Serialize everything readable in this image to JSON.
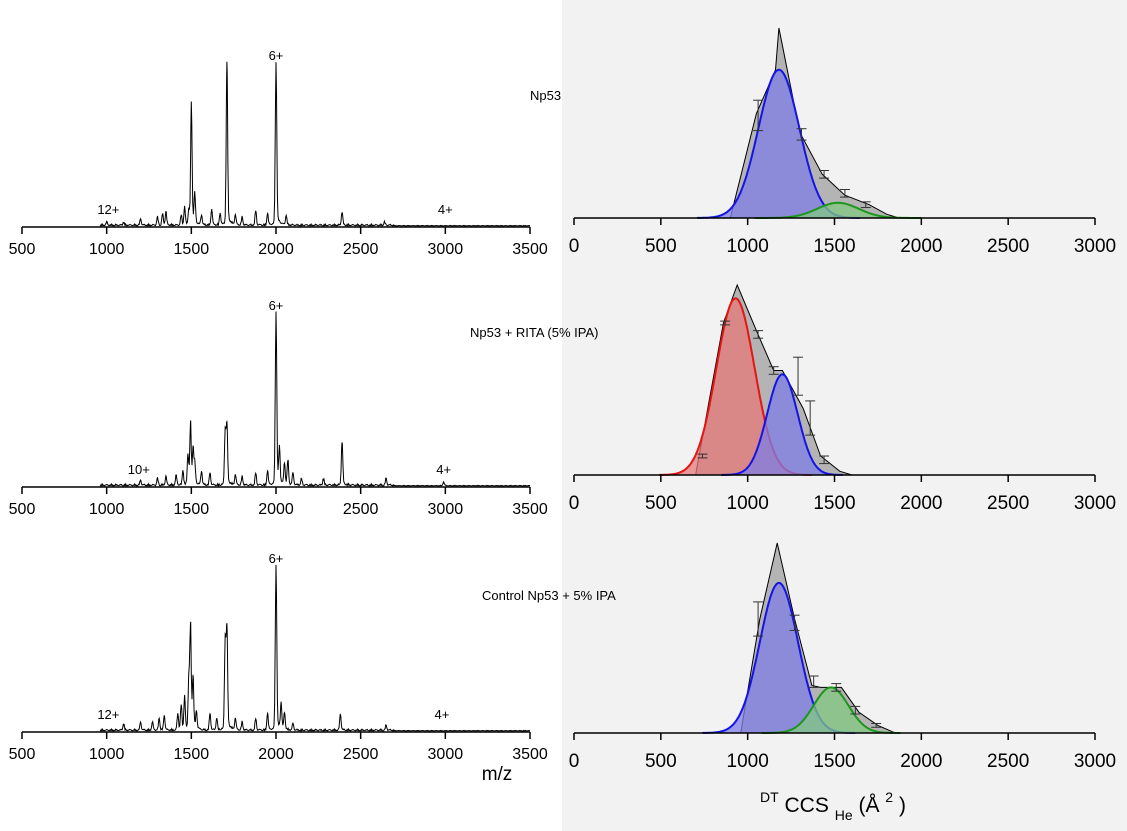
{
  "figure": {
    "xlabel_left": "m/z",
    "xlabel_right_sup": "DT",
    "xlabel_right_main": "CCS",
    "xlabel_right_sub": "He",
    "xlabel_right_tail_open": " (Å",
    "xlabel_right_tail_sup": "2",
    "xlabel_right_tail_close": ")",
    "colors": {
      "envelope_fill": "#b4b4b4",
      "blue_fill": "#7d7de6",
      "blue_line": "#1414e6",
      "red_fill": "#e67878",
      "red_line": "#e61414",
      "green_fill": "#82c882",
      "green_line": "#1e961e",
      "purple_overlap": "#8c5ab4",
      "right_panel_bg": "#f2f2f2"
    }
  },
  "chart_data": [
    {
      "type": "line",
      "panel": "mass-spectrum-np53",
      "xlabel": "",
      "ylabel": "",
      "xlim": [
        500,
        3500
      ],
      "xticks": [
        "500",
        "1000",
        "1500",
        "2000",
        "2500",
        "3000",
        "3500"
      ],
      "peak_labels": [
        {
          "text": "12+",
          "x": 1010
        },
        {
          "text": "6+",
          "x": 2000
        },
        {
          "text": "4+",
          "x": 3000
        }
      ],
      "peaks": [
        [
          1000,
          0.02
        ],
        [
          1100,
          0.02
        ],
        [
          1200,
          0.04
        ],
        [
          1300,
          0.05
        ],
        [
          1330,
          0.07
        ],
        [
          1350,
          0.08
        ],
        [
          1440,
          0.06
        ],
        [
          1460,
          0.11
        ],
        [
          1485,
          0.09
        ],
        [
          1500,
          0.75
        ],
        [
          1520,
          0.18
        ],
        [
          1560,
          0.06
        ],
        [
          1620,
          0.1
        ],
        [
          1670,
          0.07
        ],
        [
          1710,
          1.0
        ],
        [
          1760,
          0.06
        ],
        [
          1800,
          0.05
        ],
        [
          1880,
          0.09
        ],
        [
          1950,
          0.07
        ],
        [
          2000,
          1.0
        ],
        [
          2060,
          0.06
        ],
        [
          2390,
          0.08
        ],
        [
          2640,
          0.02
        ]
      ]
    },
    {
      "type": "area",
      "panel": "ccs-np53",
      "title": "Np53",
      "xlabel": "",
      "ylabel": "",
      "xlim": [
        0,
        3000
      ],
      "xticks": [
        "0",
        "500",
        "1000",
        "1500",
        "2000",
        "2500",
        "3000"
      ],
      "envelope": [
        [
          900,
          0.0
        ],
        [
          1050,
          0.55
        ],
        [
          1160,
          0.78
        ],
        [
          1180,
          1.0
        ],
        [
          1300,
          0.45
        ],
        [
          1430,
          0.23
        ],
        [
          1560,
          0.12
        ],
        [
          1700,
          0.07
        ],
        [
          1800,
          0.02
        ],
        [
          1870,
          0.0
        ]
      ],
      "errorbars": [
        [
          1060,
          0.54,
          0.08
        ],
        [
          1310,
          0.44,
          0.03
        ],
        [
          1440,
          0.23,
          0.02
        ],
        [
          1560,
          0.13,
          0.02
        ],
        [
          1680,
          0.07,
          0.015
        ]
      ],
      "gaussians": [
        {
          "color": "blue",
          "center": 1180,
          "sigma": 118,
          "amplitude": 0.78
        },
        {
          "color": "green",
          "center": 1520,
          "sigma": 120,
          "amplitude": 0.08
        }
      ]
    },
    {
      "type": "line",
      "panel": "mass-spectrum-np53-rita",
      "xlabel": "",
      "ylabel": "",
      "xlim": [
        500,
        3500
      ],
      "xticks": [
        "500",
        "1000",
        "1500",
        "2000",
        "2500",
        "3000",
        "3500"
      ],
      "peak_labels": [
        {
          "text": "10+",
          "x": 1190
        },
        {
          "text": "6+",
          "x": 2000
        },
        {
          "text": "4+",
          "x": 2990
        }
      ],
      "peaks": [
        [
          1200,
          0.03
        ],
        [
          1300,
          0.04
        ],
        [
          1350,
          0.05
        ],
        [
          1410,
          0.06
        ],
        [
          1450,
          0.08
        ],
        [
          1480,
          0.18
        ],
        [
          1495,
          0.35
        ],
        [
          1510,
          0.2
        ],
        [
          1520,
          0.12
        ],
        [
          1560,
          0.08
        ],
        [
          1610,
          0.07
        ],
        [
          1700,
          0.32
        ],
        [
          1710,
          0.34
        ],
        [
          1760,
          0.06
        ],
        [
          1800,
          0.05
        ],
        [
          1880,
          0.07
        ],
        [
          1950,
          0.08
        ],
        [
          2000,
          1.0
        ],
        [
          2020,
          0.2
        ],
        [
          2050,
          0.12
        ],
        [
          2070,
          0.14
        ],
        [
          2100,
          0.07
        ],
        [
          2150,
          0.04
        ],
        [
          2280,
          0.04
        ],
        [
          2390,
          0.25
        ],
        [
          2650,
          0.04
        ],
        [
          2990,
          0.02
        ]
      ]
    },
    {
      "type": "area",
      "panel": "ccs-np53-rita",
      "title": "Np53 + RITA (5% IPA)",
      "xlabel": "",
      "ylabel": "",
      "xlim": [
        0,
        3000
      ],
      "xticks": [
        "0",
        "500",
        "1000",
        "1500",
        "2000",
        "2500",
        "3000"
      ],
      "envelope": [
        [
          700,
          0.0
        ],
        [
          730,
          0.15
        ],
        [
          860,
          0.8
        ],
        [
          940,
          1.0
        ],
        [
          1050,
          0.76
        ],
        [
          1150,
          0.55
        ],
        [
          1200,
          0.55
        ],
        [
          1320,
          0.35
        ],
        [
          1420,
          0.1
        ],
        [
          1530,
          0.02
        ],
        [
          1600,
          0.0
        ]
      ],
      "errorbars": [
        [
          740,
          0.1,
          0.01
        ],
        [
          870,
          0.8,
          0.01
        ],
        [
          1060,
          0.74,
          0.02
        ],
        [
          1150,
          0.55,
          0.02
        ],
        [
          1290,
          0.52,
          0.1
        ],
        [
          1360,
          0.3,
          0.09
        ],
        [
          1440,
          0.08,
          0.02
        ]
      ],
      "gaussians": [
        {
          "color": "red",
          "center": 930,
          "sigma": 110,
          "amplitude": 0.93
        },
        {
          "color": "blue",
          "center": 1200,
          "sigma": 88,
          "amplitude": 0.53
        }
      ]
    },
    {
      "type": "line",
      "panel": "mass-spectrum-control",
      "xlabel": "",
      "ylabel": "",
      "xlim": [
        500,
        3500
      ],
      "xticks": [
        "500",
        "1000",
        "1500",
        "2000",
        "2500",
        "3000",
        "3500"
      ],
      "peak_labels": [
        {
          "text": "12+",
          "x": 1010
        },
        {
          "text": "6+",
          "x": 2000
        },
        {
          "text": "4+",
          "x": 2980
        }
      ],
      "peaks": [
        [
          1100,
          0.04
        ],
        [
          1200,
          0.05
        ],
        [
          1270,
          0.05
        ],
        [
          1310,
          0.07
        ],
        [
          1340,
          0.09
        ],
        [
          1420,
          0.1
        ],
        [
          1440,
          0.15
        ],
        [
          1460,
          0.2
        ],
        [
          1485,
          0.3
        ],
        [
          1495,
          0.61
        ],
        [
          1510,
          0.3
        ],
        [
          1530,
          0.1
        ],
        [
          1610,
          0.1
        ],
        [
          1650,
          0.07
        ],
        [
          1700,
          0.55
        ],
        [
          1710,
          0.6
        ],
        [
          1760,
          0.07
        ],
        [
          1800,
          0.05
        ],
        [
          1880,
          0.07
        ],
        [
          1950,
          0.1
        ],
        [
          2000,
          1.0
        ],
        [
          2030,
          0.15
        ],
        [
          2050,
          0.1
        ],
        [
          2100,
          0.04
        ],
        [
          2380,
          0.1
        ],
        [
          2650,
          0.03
        ]
      ]
    },
    {
      "type": "area",
      "panel": "ccs-control",
      "title": "Control Np53 + 5% IPA",
      "xlabel": "",
      "ylabel": "",
      "xlim": [
        0,
        3000
      ],
      "xticks": [
        "0",
        "500",
        "1000",
        "1500",
        "2000",
        "2500",
        "3000"
      ],
      "envelope": [
        [
          960,
          0.0
        ],
        [
          1070,
          0.6
        ],
        [
          1170,
          1.0
        ],
        [
          1270,
          0.6
        ],
        [
          1370,
          0.25
        ],
        [
          1420,
          0.24
        ],
        [
          1540,
          0.24
        ],
        [
          1640,
          0.11
        ],
        [
          1750,
          0.04
        ],
        [
          1850,
          0.0
        ]
      ],
      "errorbars": [
        [
          1060,
          0.6,
          0.09
        ],
        [
          1270,
          0.58,
          0.04
        ],
        [
          1380,
          0.27,
          0.03
        ],
        [
          1510,
          0.24,
          0.02
        ],
        [
          1620,
          0.12,
          0.02
        ],
        [
          1740,
          0.04,
          0.01
        ]
      ],
      "gaussians": [
        {
          "color": "blue",
          "center": 1180,
          "sigma": 110,
          "amplitude": 0.79
        },
        {
          "color": "green",
          "center": 1480,
          "sigma": 100,
          "amplitude": 0.24
        }
      ]
    }
  ]
}
